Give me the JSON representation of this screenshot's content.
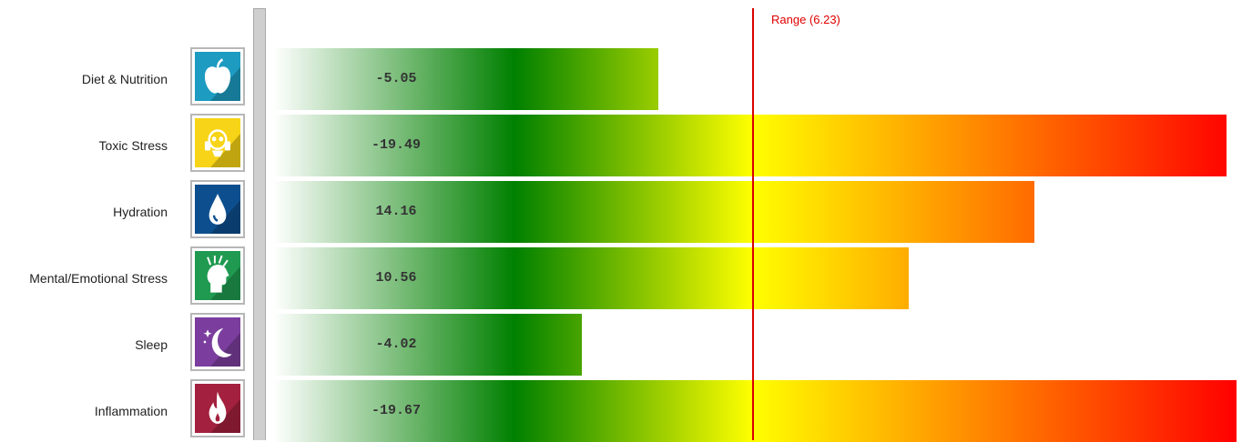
{
  "chart_data": {
    "type": "bar",
    "orientation": "horizontal",
    "categories": [
      "Diet & Nutrition",
      "Toxic Stress",
      "Hydration",
      "Mental/Emotional Stress",
      "Sleep",
      "Inflammation"
    ],
    "values": [
      -5.05,
      -19.49,
      14.16,
      10.56,
      -4.02,
      -19.67
    ],
    "value_labels": [
      "-5.05",
      "-19.49",
      "14.16",
      "10.56",
      "-4.02",
      "-19.67"
    ],
    "bar_fill": [
      0.4,
      0.99,
      0.79,
      0.66,
      0.32,
      1.0
    ],
    "reference_line": {
      "label": "Range (6.23)"
    },
    "icons": [
      {
        "name": "apple-icon",
        "color": "#1d9bc1"
      },
      {
        "name": "gas-mask-icon",
        "color": "#f7d417"
      },
      {
        "name": "water-drop-icon",
        "color": "#0d4f8e"
      },
      {
        "name": "stressed-head-icon",
        "color": "#1f9a50"
      },
      {
        "name": "moon-stars-icon",
        "color": "#7b3e9e"
      },
      {
        "name": "flame-icon",
        "color": "#a3213e"
      }
    ],
    "gradient_colors": [
      "#ffffff",
      "#008000",
      "#ffff00",
      "#ff0000"
    ],
    "title": "",
    "xlabel": "",
    "ylabel": ""
  }
}
